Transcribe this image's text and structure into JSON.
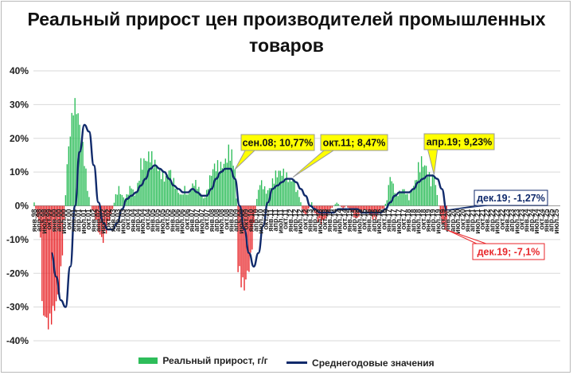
{
  "chart_data": {
    "type": "bar",
    "title": "Реальный прирост цен производителей промышленных товаров",
    "xlabel": "",
    "ylabel": "",
    "ylim": [
      -40,
      40
    ],
    "yticks": [
      40,
      30,
      20,
      10,
      0,
      -10,
      -20,
      -30,
      -40
    ],
    "ytick_labels": [
      "40%",
      "30%",
      "20%",
      "10%",
      "0%",
      "-10%",
      "-20%",
      "-30%",
      "-40%"
    ],
    "grid": true,
    "legend_position": "bottom",
    "colors": {
      "positive_bar": "#2ebd5a",
      "negative_bar": "#e8262a",
      "avg_line": "#102a6b"
    },
    "x_start": "янв.98",
    "x_end": "дек.25",
    "x_tick_labels": [
      "янв.98",
      "апр.98",
      "июл.98",
      "окт.99",
      "янв.00",
      "апр.00",
      "июл.00",
      "окт.00",
      "янв.01",
      "апр.01",
      "июл.01",
      "окт.01",
      "янв.02",
      "апр.02",
      "июл.02",
      "окт.02",
      "янв.03",
      "апр.03",
      "июл.03",
      "окт.03",
      "янв.04",
      "апр.04",
      "июл.04",
      "окт.04",
      "янв.05",
      "апр.05",
      "июл.05",
      "окт.05",
      "янв.06",
      "апр.06",
      "июл.06",
      "окт.06",
      "янв.07",
      "апр.07",
      "июл.07",
      "окт.07",
      "янв.08",
      "апр.08",
      "июл.08",
      "окт.08",
      "янв.09",
      "апр.09",
      "июл.09",
      "окт.09",
      "янв.10",
      "апр.10",
      "июл.10",
      "окт.10",
      "янв.11",
      "апр.11",
      "июл.11",
      "окт.11",
      "янв.12",
      "апр.12",
      "июл.12",
      "окт.12",
      "янв.13",
      "апр.13",
      "июл.13",
      "окт.13",
      "янв.14",
      "апр.14",
      "июл.14",
      "окт.14",
      "янв.15",
      "апр.15",
      "июл.15",
      "окт.15",
      "янв.16",
      "апр.16",
      "июл.16",
      "окт.16",
      "янв.17",
      "апр.17",
      "июл.17",
      "окт.17",
      "янв.18",
      "апр.18",
      "июл.18",
      "окт.18",
      "янв.19",
      "апр.19",
      "июл.19",
      "окт.19",
      "янв.20",
      "апр.20",
      "июл.20",
      "окт.20",
      "янв.21",
      "апр.21",
      "июл.21",
      "окт.21",
      "янв.22",
      "апр.22",
      "июл.22",
      "окт.22",
      "янв.23",
      "апр.23",
      "июл.23",
      "окт.23",
      "янв.24",
      "апр.24",
      "июл.24",
      "окт.24",
      "янв.25",
      "апр.25",
      "июл.25"
    ],
    "bar_profile": [
      [
        "1998-01",
        1
      ],
      [
        "1998-03",
        -3
      ],
      [
        "1998-05",
        -8
      ],
      [
        "1998-06",
        -30
      ],
      [
        "1998-08",
        -33
      ],
      [
        "1998-10",
        -35
      ],
      [
        "1998-12",
        -33
      ],
      [
        "1999-02",
        -30
      ],
      [
        "1999-04",
        -27
      ],
      [
        "1999-06",
        -20
      ],
      [
        "1999-08",
        -5
      ],
      [
        "1999-10",
        12
      ],
      [
        "1999-12",
        22
      ],
      [
        "2000-02",
        29
      ],
      [
        "2000-03",
        30
      ],
      [
        "2000-05",
        27
      ],
      [
        "2000-07",
        20
      ],
      [
        "2000-09",
        14
      ],
      [
        "2000-11",
        5
      ],
      [
        "2001-01",
        0
      ],
      [
        "2001-03",
        -2
      ],
      [
        "2001-05",
        -5
      ],
      [
        "2001-07",
        -9
      ],
      [
        "2001-09",
        -10
      ],
      [
        "2001-11",
        -7
      ],
      [
        "2002-01",
        -4
      ],
      [
        "2002-03",
        -1
      ],
      [
        "2002-05",
        3
      ],
      [
        "2002-07",
        5
      ],
      [
        "2002-09",
        3
      ],
      [
        "2002-11",
        2
      ],
      [
        "2003-01",
        4
      ],
      [
        "2003-03",
        6
      ],
      [
        "2003-05",
        3
      ],
      [
        "2003-07",
        6
      ],
      [
        "2003-09",
        12
      ],
      [
        "2003-11",
        13
      ],
      [
        "2004-01",
        14
      ],
      [
        "2004-03",
        15
      ],
      [
        "2004-05",
        13
      ],
      [
        "2004-07",
        12
      ],
      [
        "2004-09",
        10
      ],
      [
        "2004-11",
        9
      ],
      [
        "2005-01",
        8
      ],
      [
        "2005-03",
        11
      ],
      [
        "2005-05",
        8
      ],
      [
        "2005-07",
        6
      ],
      [
        "2005-09",
        4
      ],
      [
        "2005-11",
        3
      ],
      [
        "2006-01",
        5
      ],
      [
        "2006-03",
        3
      ],
      [
        "2006-05",
        5
      ],
      [
        "2006-07",
        7
      ],
      [
        "2006-09",
        6
      ],
      [
        "2006-11",
        4
      ],
      [
        "2007-01",
        2
      ],
      [
        "2007-03",
        4
      ],
      [
        "2007-05",
        8
      ],
      [
        "2007-07",
        11
      ],
      [
        "2007-09",
        12
      ],
      [
        "2007-11",
        11
      ],
      [
        "2008-01",
        12
      ],
      [
        "2008-03",
        13
      ],
      [
        "2008-05",
        16
      ],
      [
        "2008-07",
        15
      ],
      [
        "2008-09",
        10.77
      ],
      [
        "2008-10",
        2
      ],
      [
        "2008-11",
        -18
      ],
      [
        "2009-01",
        -22
      ],
      [
        "2009-03",
        -24
      ],
      [
        "2009-05",
        -20
      ],
      [
        "2009-07",
        -16
      ],
      [
        "2009-09",
        -6
      ],
      [
        "2009-11",
        2
      ],
      [
        "2010-01",
        7
      ],
      [
        "2010-03",
        6
      ],
      [
        "2010-05",
        4
      ],
      [
        "2010-07",
        5
      ],
      [
        "2010-09",
        7
      ],
      [
        "2010-11",
        9
      ],
      [
        "2011-01",
        10
      ],
      [
        "2011-03",
        10
      ],
      [
        "2011-05",
        9
      ],
      [
        "2011-07",
        8
      ],
      [
        "2011-09",
        7
      ],
      [
        "2011-10",
        8.47
      ],
      [
        "2011-12",
        5
      ],
      [
        "2012-02",
        3
      ],
      [
        "2012-04",
        -1
      ],
      [
        "2012-06",
        -3
      ],
      [
        "2012-08",
        -1
      ],
      [
        "2012-10",
        1
      ],
      [
        "2012-12",
        -2
      ],
      [
        "2013-02",
        -4
      ],
      [
        "2013-04",
        -5
      ],
      [
        "2013-06",
        -4
      ],
      [
        "2013-08",
        -3
      ],
      [
        "2013-10",
        -1
      ],
      [
        "2013-12",
        0
      ],
      [
        "2014-02",
        1
      ],
      [
        "2014-04",
        0
      ],
      [
        "2014-06",
        -1
      ],
      [
        "2014-08",
        0
      ],
      [
        "2014-10",
        -1
      ],
      [
        "2014-12",
        -2
      ],
      [
        "2015-02",
        -4
      ],
      [
        "2015-04",
        -3
      ],
      [
        "2015-06",
        -2
      ],
      [
        "2015-08",
        -1
      ],
      [
        "2015-10",
        -2
      ],
      [
        "2015-12",
        -3
      ],
      [
        "2016-02",
        -4
      ],
      [
        "2016-04",
        -3
      ],
      [
        "2016-06",
        -1
      ],
      [
        "2016-08",
        -1
      ],
      [
        "2016-10",
        2
      ],
      [
        "2016-12",
        9
      ],
      [
        "2017-02",
        6
      ],
      [
        "2017-04",
        3
      ],
      [
        "2017-06",
        4
      ],
      [
        "2017-08",
        5
      ],
      [
        "2017-10",
        4
      ],
      [
        "2017-12",
        2
      ],
      [
        "2018-02",
        5
      ],
      [
        "2018-04",
        7
      ],
      [
        "2018-06",
        11
      ],
      [
        "2018-08",
        13
      ],
      [
        "2018-10",
        12
      ],
      [
        "2018-12",
        10
      ],
      [
        "2019-02",
        7
      ],
      [
        "2019-04",
        9.23
      ],
      [
        "2019-06",
        3
      ],
      [
        "2019-08",
        -3
      ],
      [
        "2019-10",
        -6
      ],
      [
        "2019-12",
        -7.1
      ]
    ],
    "series": [
      {
        "name": "Среднегодовые значения",
        "type": "line",
        "points": [
          [
            "1998-12",
            -14
          ],
          [
            "1999-03",
            -21
          ],
          [
            "1999-06",
            -28
          ],
          [
            "1999-09",
            -30
          ],
          [
            "1999-12",
            -18
          ],
          [
            "2000-03",
            0
          ],
          [
            "2000-06",
            16
          ],
          [
            "2000-09",
            24
          ],
          [
            "2000-12",
            22
          ],
          [
            "2001-03",
            12
          ],
          [
            "2001-06",
            1
          ],
          [
            "2001-09",
            -5
          ],
          [
            "2001-12",
            -7
          ],
          [
            "2002-03",
            -7
          ],
          [
            "2002-06",
            -5
          ],
          [
            "2002-09",
            -1
          ],
          [
            "2002-12",
            2
          ],
          [
            "2003-03",
            3
          ],
          [
            "2003-06",
            4
          ],
          [
            "2003-09",
            6
          ],
          [
            "2003-12",
            8
          ],
          [
            "2004-03",
            11
          ],
          [
            "2004-06",
            12
          ],
          [
            "2004-09",
            11
          ],
          [
            "2004-12",
            10
          ],
          [
            "2005-03",
            8
          ],
          [
            "2005-06",
            6
          ],
          [
            "2005-09",
            5
          ],
          [
            "2005-12",
            4
          ],
          [
            "2006-03",
            4
          ],
          [
            "2006-06",
            5
          ],
          [
            "2006-09",
            4
          ],
          [
            "2006-12",
            3
          ],
          [
            "2007-03",
            3
          ],
          [
            "2007-06",
            5
          ],
          [
            "2007-09",
            8
          ],
          [
            "2007-12",
            10
          ],
          [
            "2008-03",
            11
          ],
          [
            "2008-06",
            11
          ],
          [
            "2008-09",
            8
          ],
          [
            "2008-12",
            0
          ],
          [
            "2009-03",
            -7
          ],
          [
            "2009-06",
            -14
          ],
          [
            "2009-09",
            -18
          ],
          [
            "2009-12",
            -14
          ],
          [
            "2010-03",
            -6
          ],
          [
            "2010-06",
            1
          ],
          [
            "2010-09",
            5
          ],
          [
            "2010-12",
            6
          ],
          [
            "2011-03",
            7
          ],
          [
            "2011-06",
            8
          ],
          [
            "2011-09",
            8
          ],
          [
            "2011-12",
            7
          ],
          [
            "2012-03",
            5
          ],
          [
            "2012-06",
            3
          ],
          [
            "2012-09",
            0
          ],
          [
            "2012-12",
            -1
          ],
          [
            "2013-03",
            -2
          ],
          [
            "2013-06",
            -2
          ],
          [
            "2013-09",
            -2
          ],
          [
            "2013-12",
            -2
          ],
          [
            "2014-03",
            -1
          ],
          [
            "2014-06",
            -1
          ],
          [
            "2014-09",
            -1
          ],
          [
            "2014-12",
            -1
          ],
          [
            "2015-03",
            -1
          ],
          [
            "2015-06",
            -2
          ],
          [
            "2015-09",
            -2
          ],
          [
            "2015-12",
            -2
          ],
          [
            "2016-03",
            -2
          ],
          [
            "2016-06",
            -2
          ],
          [
            "2016-09",
            -1
          ],
          [
            "2016-12",
            1
          ],
          [
            "2017-03",
            3
          ],
          [
            "2017-06",
            4
          ],
          [
            "2017-09",
            4
          ],
          [
            "2017-12",
            4
          ],
          [
            "2018-03",
            5
          ],
          [
            "2018-06",
            7
          ],
          [
            "2018-09",
            8
          ],
          [
            "2018-12",
            9
          ],
          [
            "2019-03",
            9
          ],
          [
            "2019-06",
            8
          ],
          [
            "2019-09",
            5
          ],
          [
            "2019-12",
            -1.27
          ]
        ]
      }
    ],
    "bar_series_name": "Реальный прирост, г/г",
    "annotations": [
      {
        "label": "сен.08; 10,77%",
        "date": "2008-09",
        "value": 10.77,
        "style": "yellow"
      },
      {
        "label": "окт.11; 8,47%",
        "date": "2011-10",
        "value": 8.47,
        "style": "yellow"
      },
      {
        "label": "апр.19; 9,23%",
        "date": "2019-04",
        "value": 9.23,
        "style": "yellow"
      },
      {
        "label": "дек.19; -1,27%",
        "date": "2019-12",
        "value": -1.27,
        "style": "blue"
      },
      {
        "label": "дек.19; -7,1%",
        "date": "2019-12",
        "value": -7.1,
        "style": "red"
      }
    ],
    "legend": [
      {
        "label": "Реальный прирост, г/г",
        "kind": "bar"
      },
      {
        "label": "Среднегодовые значения",
        "kind": "line"
      }
    ]
  }
}
